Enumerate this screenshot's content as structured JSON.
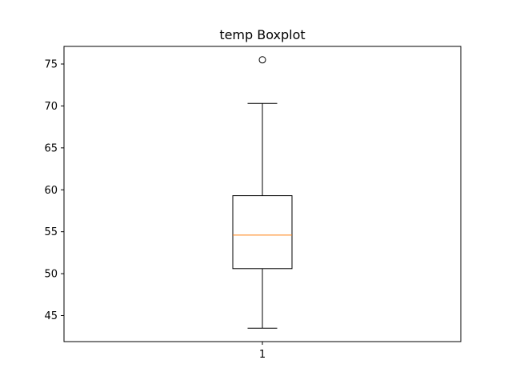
{
  "chart_data": {
    "type": "boxplot",
    "title": "temp Boxplot",
    "xlabel": "",
    "ylabel": "",
    "categories": [
      "1"
    ],
    "ylim": [
      41.9,
      77.1
    ],
    "yticks": [
      45,
      50,
      55,
      60,
      65,
      70,
      75
    ],
    "grid": false,
    "boxes": [
      {
        "category": "1",
        "whisker_low": 43.5,
        "q1": 50.6,
        "median": 54.6,
        "q3": 59.3,
        "whisker_high": 70.3,
        "outliers": [
          75.5
        ]
      }
    ],
    "colors": {
      "box": "#000000",
      "median": "#ff7f0e",
      "outlier": "#000000"
    }
  }
}
